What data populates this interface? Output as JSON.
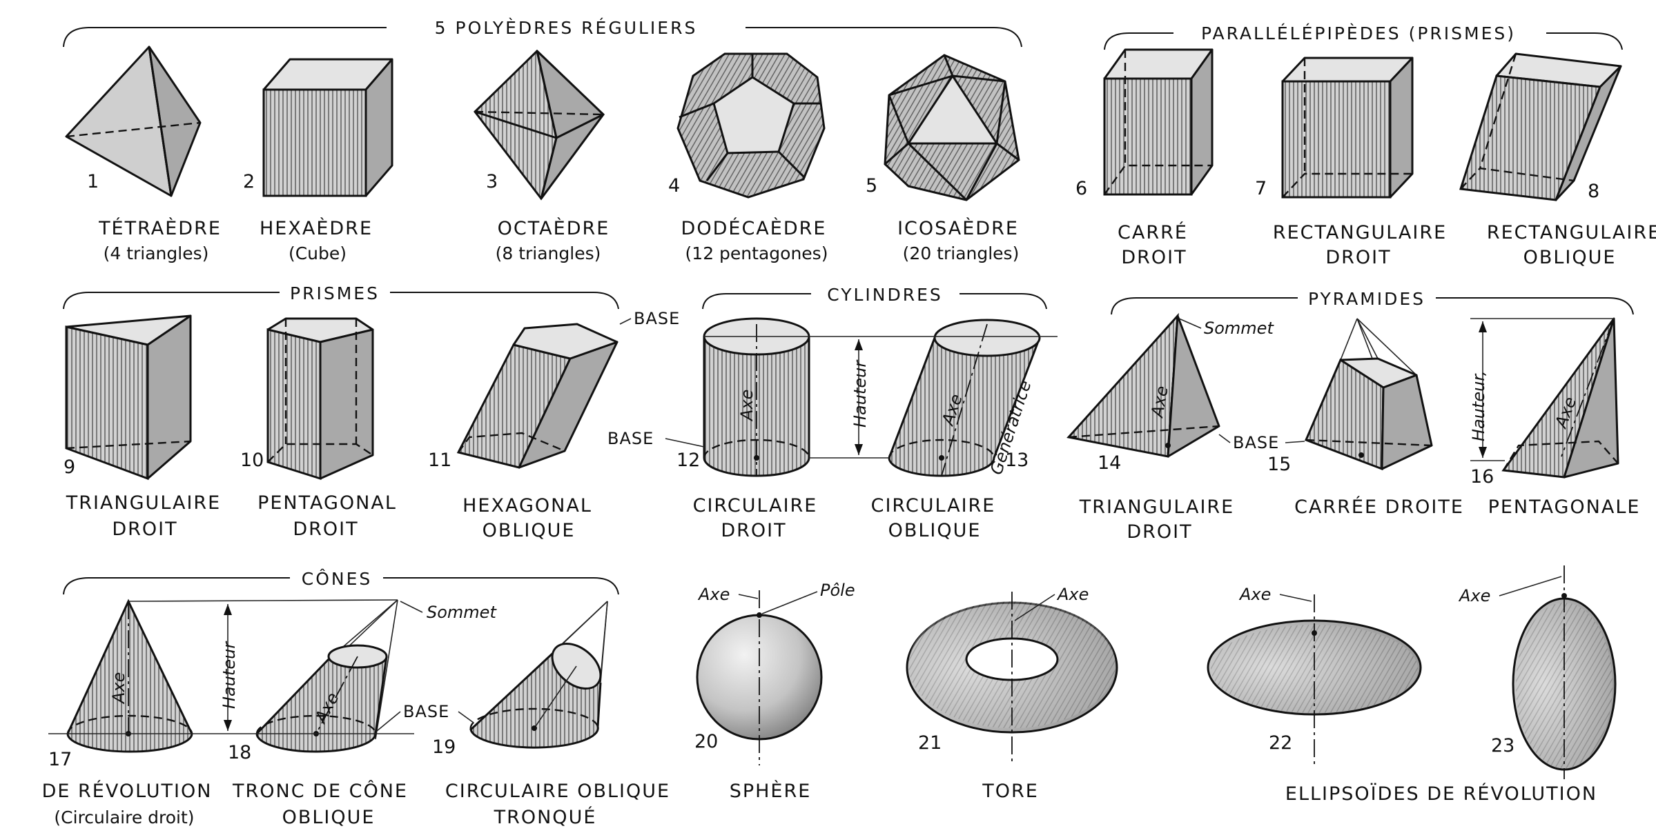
{
  "groups": {
    "polyedres": "5  POLYÈDRES  RÉGULIERS",
    "parallelepipedes": "PARALLÉLÉPIPÈDES  (PRISMES)",
    "prismes": "PRISMES",
    "cylindres": "CYLINDRES",
    "pyramides": "PYRAMIDES",
    "cones": "CÔNES"
  },
  "figures": [
    {
      "num": "1",
      "line1": "TÉTRAÈDRE",
      "line2": "(4 triangles)"
    },
    {
      "num": "2",
      "line1": "HEXAÈDRE",
      "line2": "(Cube)"
    },
    {
      "num": "3",
      "line1": "OCTAÈDRE",
      "line2": "(8 triangles)"
    },
    {
      "num": "4",
      "line1": "DODÉCAÈDRE",
      "line2": "(12 pentagones)"
    },
    {
      "num": "5",
      "line1": "ICOSAÈDRE",
      "line2": "(20 triangles)"
    },
    {
      "num": "6",
      "line1": "CARRÉ",
      "line2": "DROIT"
    },
    {
      "num": "7",
      "line1": "RECTANGULAIRE",
      "line2": "DROIT"
    },
    {
      "num": "8",
      "line1": "RECTANGULAIRE",
      "line2": "OBLIQUE"
    },
    {
      "num": "9",
      "line1": "TRIANGULAIRE",
      "line2": "DROIT"
    },
    {
      "num": "10",
      "line1": "PENTAGONAL",
      "line2": "DROIT"
    },
    {
      "num": "11",
      "line1": "HEXAGONAL",
      "line2": "OBLIQUE"
    },
    {
      "num": "12",
      "line1": "CIRCULAIRE",
      "line2": "DROIT"
    },
    {
      "num": "13",
      "line1": "CIRCULAIRE",
      "line2": "OBLIQUE"
    },
    {
      "num": "14",
      "line1": "TRIANGULAIRE",
      "line2": "DROIT"
    },
    {
      "num": "15",
      "line1": "CARRÉE  DROITE",
      "line2": ""
    },
    {
      "num": "16",
      "line1": "PENTAGONALE",
      "line2": ""
    },
    {
      "num": "17",
      "line1": "DE  RÉVOLUTION",
      "line2": "(Circulaire droit)"
    },
    {
      "num": "18",
      "line1": "TRONC  DE  CÔNE",
      "line2": "OBLIQUE"
    },
    {
      "num": "19",
      "line1": "CIRCULAIRE  OBLIQUE",
      "line2": "TRONQUÉ"
    },
    {
      "num": "20",
      "line1": "SPHÈRE",
      "line2": ""
    },
    {
      "num": "21",
      "line1": "TORE",
      "line2": ""
    },
    {
      "num": "22",
      "line1": "",
      "line2": ""
    },
    {
      "num": "23",
      "line1": "",
      "line2": ""
    }
  ],
  "ellipsoides_caption": "ELLIPSOÏDES  DE  RÉVOLUTION",
  "annotations": {
    "base": "BASE",
    "hauteur": "Hauteur",
    "hauteur_comma": "Hauteur,",
    "axe": "Axe",
    "generatrice": "Génératrice",
    "sommet": "Sommet",
    "pole": "Pôle"
  }
}
